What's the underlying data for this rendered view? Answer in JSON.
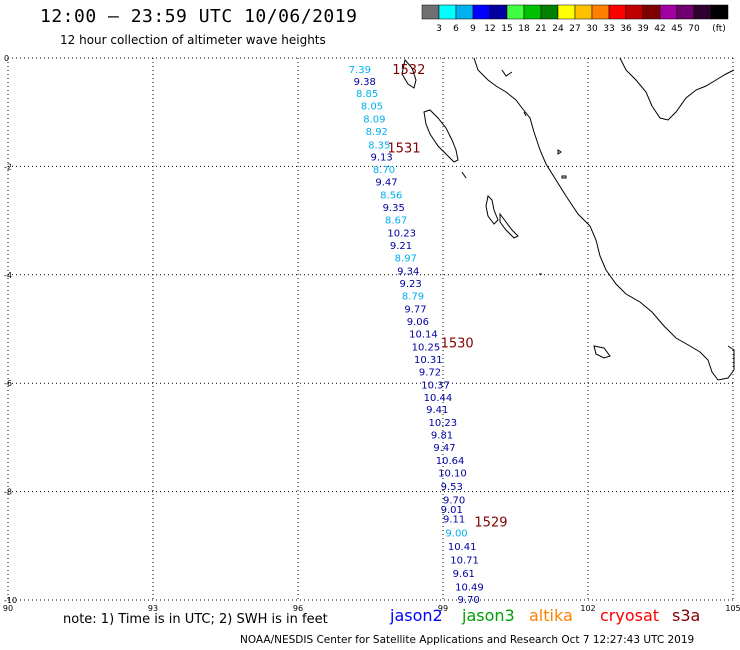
{
  "header": {
    "title": "12:00 – 23:59 UTC 10/06/2019",
    "subtitle": "12 hour collection of altimeter wave heights"
  },
  "legend": {
    "unit": "(ft)",
    "colors": [
      "#707070",
      "#00ffff",
      "#00b0f0",
      "#0000ff",
      "#0000a0",
      "#40ff40",
      "#00c000",
      "#008000",
      "#ffff00",
      "#ffc000",
      "#ff8000",
      "#ff0000",
      "#c00000",
      "#800000",
      "#a000a0",
      "#700070",
      "#300030",
      "#000000"
    ],
    "labels": [
      "3",
      "6",
      "9",
      "12",
      "15",
      "18",
      "21",
      "24",
      "27",
      "30",
      "33",
      "36",
      "39",
      "42",
      "45",
      "70"
    ]
  },
  "axes": {
    "x_ticks": [
      "90",
      "93",
      "96",
      "99",
      "102",
      "105"
    ],
    "y_ticks": [
      "0",
      "-2",
      "-4",
      "-6",
      "-8",
      "-10"
    ]
  },
  "footer": {
    "note": "note:  1) Time is in UTC;  2) SWH is in feet",
    "credit": "NOAA/NESDIS Center for Satellite Applications and Research    Oct  7 12:27:43 UTC 2019"
  },
  "satellites": [
    {
      "name": "jason2",
      "color": "#0000ff"
    },
    {
      "name": "jason3",
      "color": "#00a000"
    },
    {
      "name": "altika",
      "color": "#ff8000"
    },
    {
      "name": "cryosat",
      "color": "#ff0000"
    },
    {
      "name": "s3a",
      "color": "#800000"
    }
  ],
  "time_labels": [
    {
      "text": "1532",
      "lon": 97.95,
      "lat": -0.2
    },
    {
      "text": "1531",
      "lon": 97.85,
      "lat": -1.65
    },
    {
      "text": "1530",
      "lon": 98.95,
      "lat": -5.25
    },
    {
      "text": "1529",
      "lon": 99.65,
      "lat": -8.55
    }
  ],
  "observations": [
    {
      "v": "7.39",
      "lon": 97.05,
      "lat": -0.2,
      "c": "#00b0f0"
    },
    {
      "v": "9.38",
      "lon": 97.15,
      "lat": -0.42,
      "c": "#0000a0"
    },
    {
      "v": "8.85",
      "lon": 97.2,
      "lat": -0.65,
      "c": "#00b0f0"
    },
    {
      "v": "8.05",
      "lon": 97.3,
      "lat": -0.88,
      "c": "#00b0f0"
    },
    {
      "v": "8.09",
      "lon": 97.35,
      "lat": -1.12,
      "c": "#00b0f0"
    },
    {
      "v": "8.92",
      "lon": 97.4,
      "lat": -1.35,
      "c": "#00b0f0"
    },
    {
      "v": "8.35",
      "lon": 97.45,
      "lat": -1.6,
      "c": "#00b0f0"
    },
    {
      "v": "9.13",
      "lon": 97.5,
      "lat": -1.82,
      "c": "#0000a0"
    },
    {
      "v": "8.70",
      "lon": 97.55,
      "lat": -2.05,
      "c": "#00b0f0"
    },
    {
      "v": "9.47",
      "lon": 97.6,
      "lat": -2.28,
      "c": "#0000a0"
    },
    {
      "v": "8.56",
      "lon": 97.7,
      "lat": -2.52,
      "c": "#00b0f0"
    },
    {
      "v": "9.35",
      "lon": 97.75,
      "lat": -2.75,
      "c": "#0000a0"
    },
    {
      "v": "8.67",
      "lon": 97.8,
      "lat": -2.98,
      "c": "#00b0f0"
    },
    {
      "v": "10.23",
      "lon": 97.85,
      "lat": -3.22,
      "c": "#0000a0"
    },
    {
      "v": "9.21",
      "lon": 97.9,
      "lat": -3.45,
      "c": "#0000a0"
    },
    {
      "v": "8.97",
      "lon": 98.0,
      "lat": -3.68,
      "c": "#00b0f0"
    },
    {
      "v": "9.34",
      "lon": 98.05,
      "lat": -3.92,
      "c": "#0000a0"
    },
    {
      "v": "9.23",
      "lon": 98.1,
      "lat": -4.15,
      "c": "#0000a0"
    },
    {
      "v": "8.79",
      "lon": 98.15,
      "lat": -4.38,
      "c": "#00b0f0"
    },
    {
      "v": "9.77",
      "lon": 98.2,
      "lat": -4.62,
      "c": "#0000a0"
    },
    {
      "v": "9.06",
      "lon": 98.25,
      "lat": -4.85,
      "c": "#0000a0"
    },
    {
      "v": "10.14",
      "lon": 98.3,
      "lat": -5.08,
      "c": "#0000a0"
    },
    {
      "v": "10.25",
      "lon": 98.35,
      "lat": -5.32,
      "c": "#0000a0"
    },
    {
      "v": "10.31",
      "lon": 98.4,
      "lat": -5.55,
      "c": "#0000a0"
    },
    {
      "v": "9.72",
      "lon": 98.5,
      "lat": -5.78,
      "c": "#0000a0"
    },
    {
      "v": "10.37",
      "lon": 98.55,
      "lat": -6.02,
      "c": "#0000a0"
    },
    {
      "v": "10.44",
      "lon": 98.6,
      "lat": -6.25,
      "c": "#0000a0"
    },
    {
      "v": "9.41",
      "lon": 98.65,
      "lat": -6.48,
      "c": "#0000a0"
    },
    {
      "v": "10.23",
      "lon": 98.7,
      "lat": -6.72,
      "c": "#0000a0"
    },
    {
      "v": "9.81",
      "lon": 98.75,
      "lat": -6.95,
      "c": "#0000a0"
    },
    {
      "v": "9.47",
      "lon": 98.8,
      "lat": -7.18,
      "c": "#0000a0"
    },
    {
      "v": "10.64",
      "lon": 98.85,
      "lat": -7.42,
      "c": "#0000a0"
    },
    {
      "v": "10.10",
      "lon": 98.9,
      "lat": -7.65,
      "c": "#0000a0"
    },
    {
      "v": "9.53",
      "lon": 98.95,
      "lat": -7.9,
      "c": "#0000a0"
    },
    {
      "v": "9.70",
      "lon": 99.0,
      "lat": -8.15,
      "c": "#0000a0"
    },
    {
      "v": "9.01",
      "lon": 98.95,
      "lat": -8.32,
      "c": "#0000a0"
    },
    {
      "v": "9.11",
      "lon": 99.0,
      "lat": -8.5,
      "c": "#0000a0"
    },
    {
      "v": "9.00",
      "lon": 99.05,
      "lat": -8.75,
      "c": "#00b0f0"
    },
    {
      "v": "10.41",
      "lon": 99.1,
      "lat": -9.0,
      "c": "#0000a0"
    },
    {
      "v": "10.71",
      "lon": 99.15,
      "lat": -9.25,
      "c": "#0000a0"
    },
    {
      "v": "9.61",
      "lon": 99.2,
      "lat": -9.5,
      "c": "#0000a0"
    },
    {
      "v": "10.49",
      "lon": 99.25,
      "lat": -9.75,
      "c": "#0000a0"
    },
    {
      "v": "9.70",
      "lon": 99.3,
      "lat": -9.98,
      "c": "#0000a0"
    }
  ]
}
